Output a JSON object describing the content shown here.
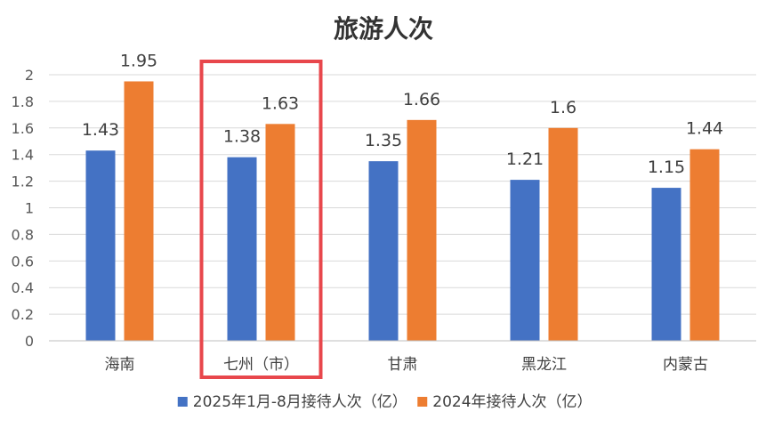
{
  "chart_data": {
    "type": "bar",
    "title": "旅游人次",
    "xlabel": "",
    "ylabel": "",
    "categories": [
      "海南",
      "七州（市）",
      "甘肃",
      "黑龙江",
      "内蒙古"
    ],
    "series": [
      {
        "name": "2025年1月-8月接待人次（亿）",
        "values": [
          1.43,
          1.38,
          1.35,
          1.21,
          1.15
        ],
        "color": "#4472C4"
      },
      {
        "name": "2024年接待人次（亿）",
        "values": [
          1.95,
          1.63,
          1.66,
          1.6,
          1.44
        ],
        "color": "#ED7D31"
      }
    ],
    "ylim": [
      0,
      2
    ],
    "yticks": [
      "0",
      "0.2",
      "0.4",
      "0.6",
      "0.8",
      "1",
      "1.2",
      "1.4",
      "1.6",
      "1.8",
      "2"
    ],
    "data_labels": [
      [
        "1.43",
        "1.38",
        "1.35",
        "1.21",
        "1.15"
      ],
      [
        "1.95",
        "1.63",
        "1.66",
        "1.6",
        "1.44"
      ]
    ],
    "grid": true,
    "legend_position": "bottom",
    "highlight_category": "七州（市）",
    "highlight_color": "#E8474C"
  }
}
